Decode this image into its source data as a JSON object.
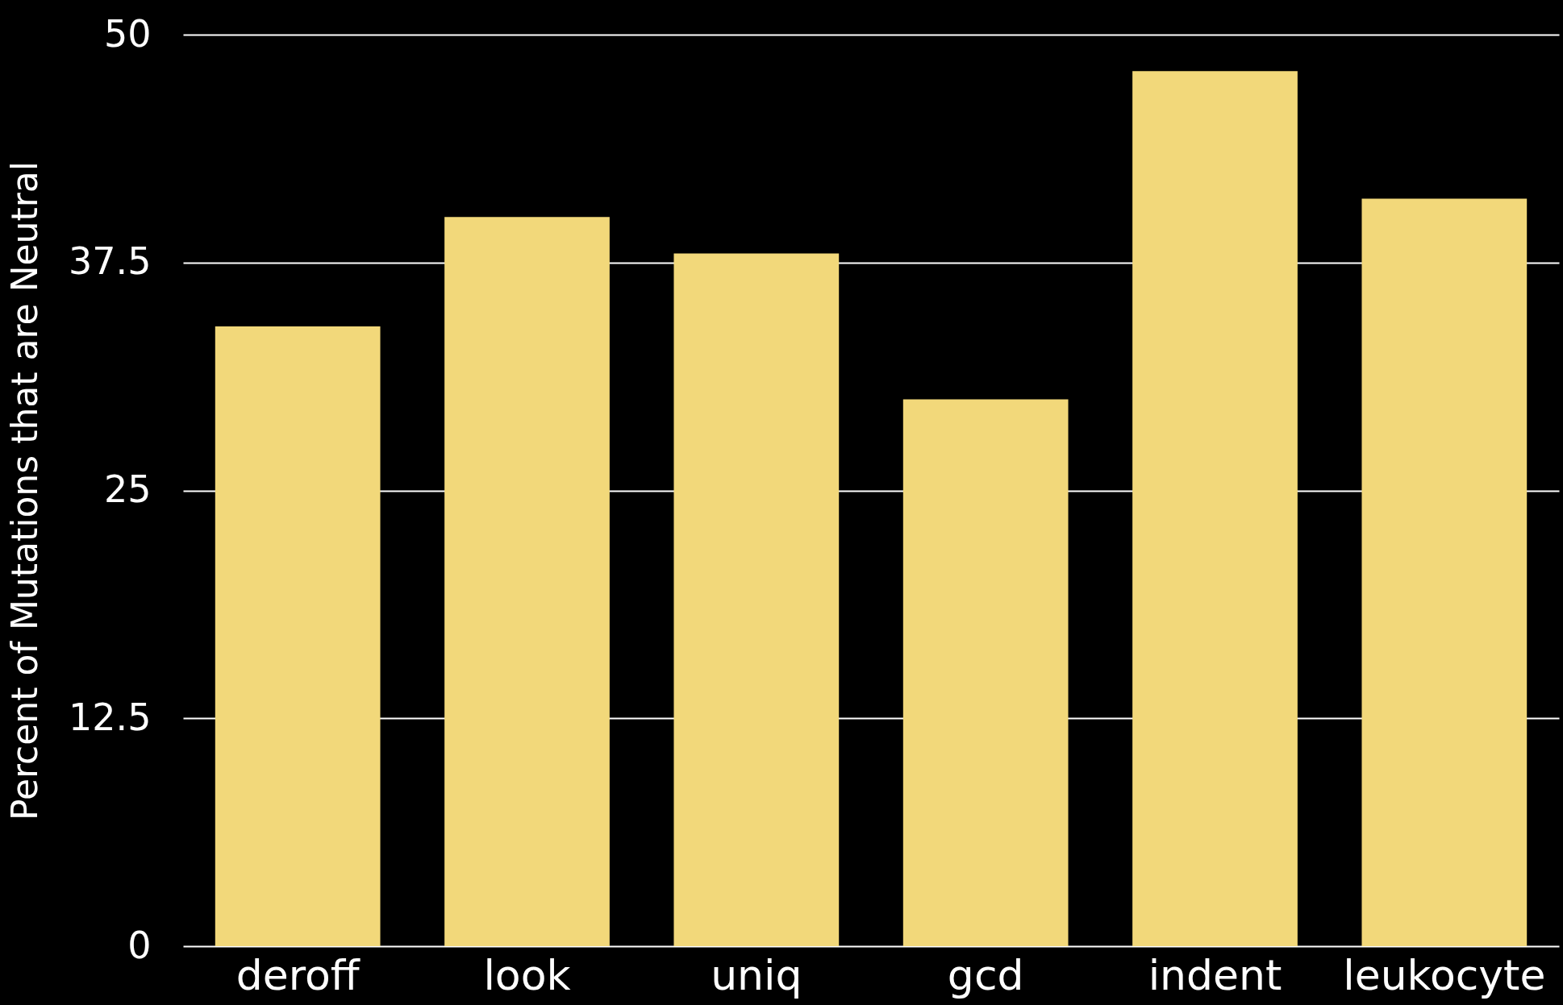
{
  "chart_data": {
    "type": "bar",
    "ylabel": "Percent of Mutations that are Neutral",
    "categories": [
      "deroff",
      "look",
      "uniq",
      "gcd",
      "indent",
      "leukocyte"
    ],
    "values": [
      34,
      40,
      38,
      30,
      48,
      41
    ],
    "color": "#f2d87a",
    "ylim": [
      0,
      50
    ],
    "yticks": [
      0,
      12.5,
      25,
      37.5,
      50
    ],
    "grid": "y"
  }
}
